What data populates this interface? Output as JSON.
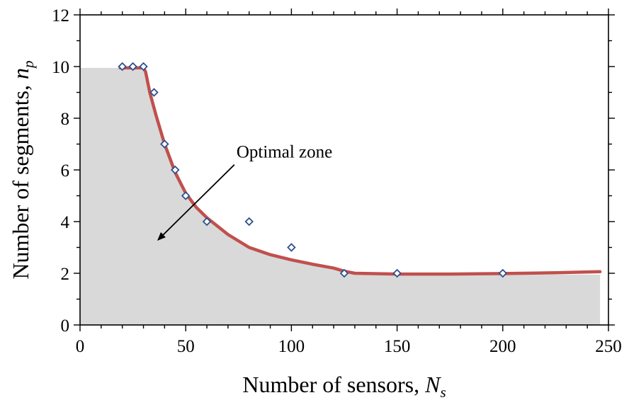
{
  "chart_data": {
    "type": "scatter",
    "xlabel": {
      "text": "Number of sensors, ",
      "var": "N",
      "sub": "s"
    },
    "ylabel": {
      "text": "Number of segments, ",
      "var": "n",
      "sub": "p"
    },
    "xlim": [
      0,
      250
    ],
    "ylim": [
      0,
      12
    ],
    "xticks": [
      0,
      50,
      100,
      150,
      200,
      250
    ],
    "yticks": [
      0,
      2,
      4,
      6,
      8,
      10,
      12
    ],
    "grid": false,
    "annotation": {
      "text": "Optimal zone",
      "from": [
        73,
        6.2
      ],
      "to": [
        37,
        3.3
      ]
    },
    "zone": {
      "color": "#d9d9d9",
      "x": [
        0,
        30,
        31,
        33,
        36,
        40,
        45,
        50,
        55,
        60,
        70,
        80,
        90,
        100,
        110,
        120,
        125,
        130,
        150,
        175,
        200,
        225,
        246
      ],
      "y": [
        9.95,
        9.95,
        9.8,
        9.1,
        8.3,
        7.2,
        6.1,
        5.2,
        4.6,
        4.2,
        3.55,
        3.0,
        2.72,
        2.52,
        2.35,
        2.2,
        2.08,
        2.0,
        1.95,
        1.95,
        1.95,
        1.95,
        1.95
      ]
    },
    "series": [
      {
        "type": "scatter",
        "marker": "diamond",
        "color": "#2e4f8c",
        "x": [
          20,
          25,
          30,
          35,
          40,
          45,
          50,
          60,
          80,
          100,
          125,
          150,
          200
        ],
        "y": [
          10,
          10,
          10,
          9,
          7,
          6,
          5,
          4,
          4,
          3,
          2,
          2,
          2
        ]
      },
      {
        "type": "line",
        "color": "#c0504d",
        "x": [
          19,
          30,
          31,
          33,
          36,
          40,
          45,
          50,
          55,
          60,
          70,
          80,
          90,
          100,
          110,
          120,
          125,
          130,
          150,
          175,
          200,
          225,
          246
        ],
        "y": [
          9.95,
          9.95,
          9.8,
          9.0,
          8.1,
          7.0,
          5.9,
          5.1,
          4.55,
          4.15,
          3.5,
          3.0,
          2.72,
          2.52,
          2.35,
          2.2,
          2.08,
          2.0,
          1.97,
          1.97,
          1.99,
          2.02,
          2.06
        ]
      }
    ]
  }
}
